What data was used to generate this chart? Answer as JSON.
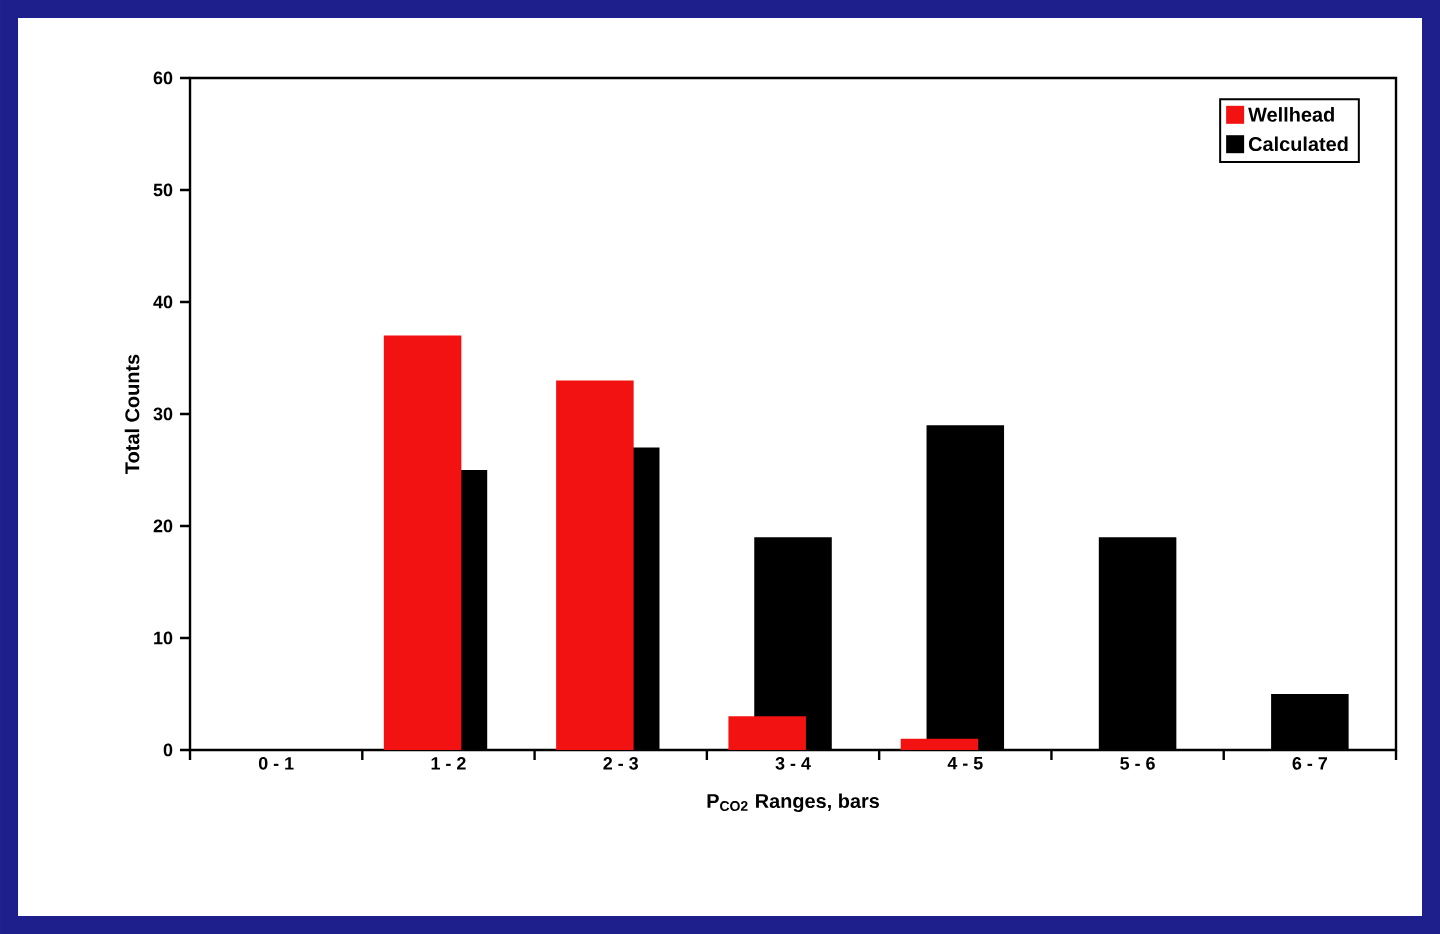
{
  "chart_data": {
    "type": "bar",
    "xlabel": "P$_{CO2}$ Ranges, bars",
    "ylabel": "Total Counts",
    "categories": [
      "0 - 1",
      "1 - 2",
      "2 - 3",
      "3 - 4",
      "4 - 5",
      "5 - 6",
      "6 - 7"
    ],
    "series": [
      {
        "name": "Wellhead",
        "color": "#f21212",
        "values": [
          0,
          37,
          33,
          3,
          1,
          0,
          0
        ]
      },
      {
        "name": "Calculated",
        "color": "#000000",
        "values": [
          0,
          25,
          27,
          19,
          29,
          19,
          5
        ]
      }
    ],
    "ylim": [
      0,
      60
    ],
    "yticks": [
      0,
      10,
      20,
      30,
      40,
      50,
      60
    ],
    "grid": false,
    "legend": "top right"
  }
}
